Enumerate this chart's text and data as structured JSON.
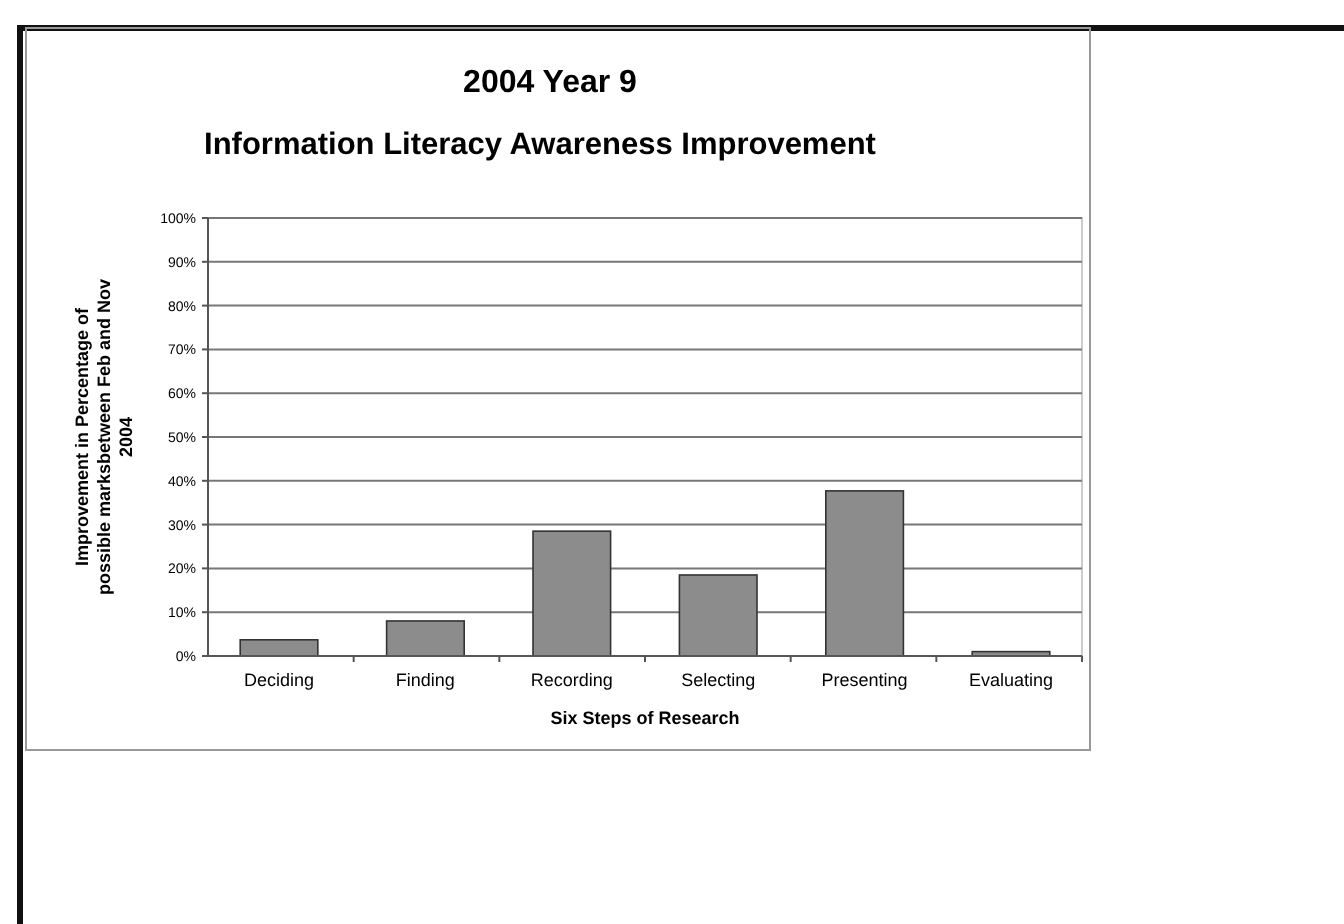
{
  "chart_data": {
    "type": "bar",
    "title": "2004 Year 9",
    "subtitle": "Information Literacy Awareness Improvement",
    "xlabel": "Six Steps of Research",
    "ylabel": "Improvement in Percentage of\npossible marksbetween Feb and Nov\n2004",
    "categories": [
      "Deciding",
      "Finding",
      "Recording",
      "Selecting",
      "Presenting",
      "Evaluating"
    ],
    "values": [
      3.7,
      8,
      28.5,
      18.5,
      37.7,
      1
    ],
    "color": "#8c8c8c",
    "ylim": [
      0,
      100
    ],
    "yticks": [
      {
        "value": 0,
        "label": "0%"
      },
      {
        "value": 10,
        "label": "10%"
      },
      {
        "value": 20,
        "label": "20%"
      },
      {
        "value": 30,
        "label": "30%"
      },
      {
        "value": 40,
        "label": "40%"
      },
      {
        "value": 50,
        "label": "50%"
      },
      {
        "value": 60,
        "label": "60%"
      },
      {
        "value": 70,
        "label": "70%"
      },
      {
        "value": 80,
        "label": "80%"
      },
      {
        "value": 90,
        "label": "90%"
      },
      {
        "value": 100,
        "label": "100%"
      }
    ],
    "grid": "y"
  }
}
